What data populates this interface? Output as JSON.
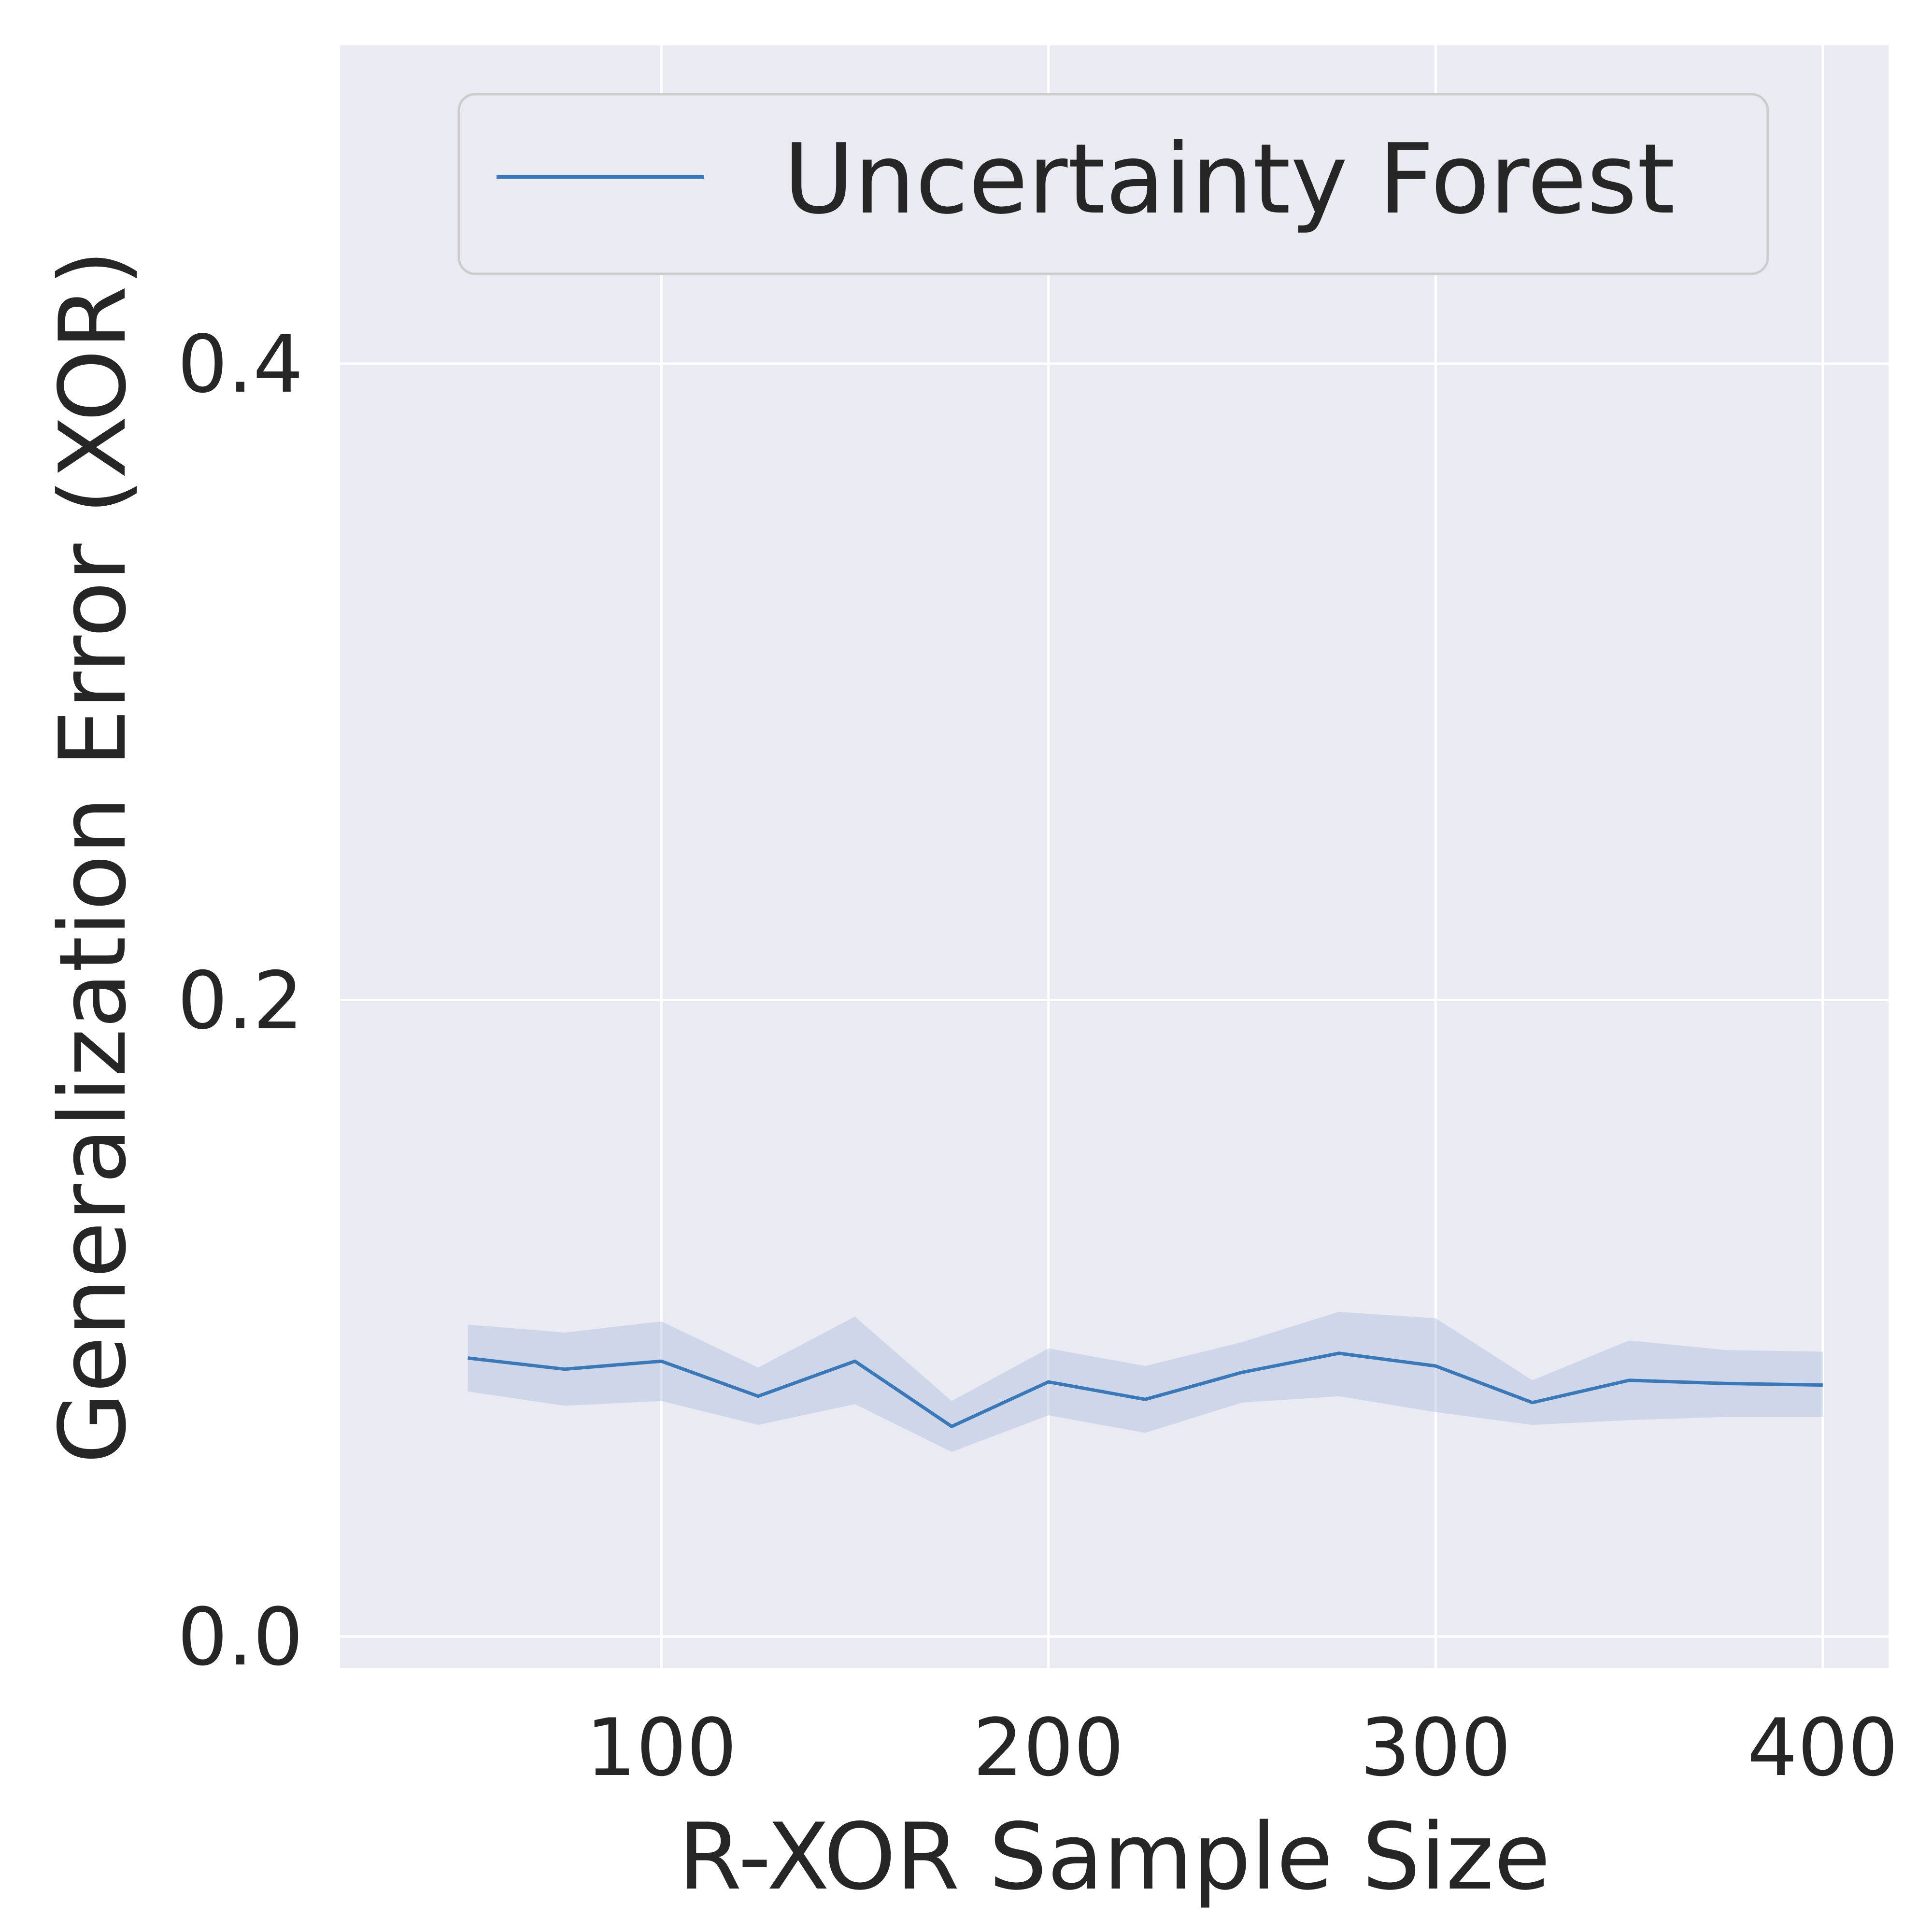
{
  "chart_data": {
    "type": "line",
    "xlabel": "R-XOR Sample Size",
    "ylabel": "Generalization Error (XOR)",
    "xlim": [
      17,
      417
    ],
    "ylim": [
      -0.01,
      0.5
    ],
    "xticks": [
      100,
      200,
      300,
      400
    ],
    "yticks": [
      0.0,
      0.2,
      0.4
    ],
    "xtick_labels": [
      "100",
      "200",
      "300",
      "400"
    ],
    "ytick_labels": [
      "0.0",
      "0.2",
      "0.4"
    ],
    "grid": true,
    "legend_position": "top-right",
    "x": [
      50,
      75,
      100,
      125,
      150,
      175,
      200,
      225,
      250,
      275,
      300,
      325,
      350,
      375,
      400
    ],
    "series": [
      {
        "name": "Uncertainty Forest",
        "color": "#3a78b8",
        "values": [
          0.0875,
          0.084,
          0.0865,
          0.0755,
          0.0865,
          0.066,
          0.08,
          0.0745,
          0.083,
          0.089,
          0.085,
          0.0735,
          0.0805,
          0.0795,
          0.079
        ],
        "band_lower": [
          0.077,
          0.0725,
          0.074,
          0.0665,
          0.073,
          0.058,
          0.0695,
          0.064,
          0.0735,
          0.0755,
          0.0705,
          0.0665,
          0.068,
          0.069,
          0.069
        ],
        "band_upper": [
          0.098,
          0.0955,
          0.099,
          0.0845,
          0.1005,
          0.074,
          0.0905,
          0.085,
          0.0925,
          0.102,
          0.1,
          0.0805,
          0.093,
          0.09,
          0.0895
        ],
        "band_color": "#aebfde"
      }
    ]
  },
  "colors": {
    "plot_background": "#eaeaf2",
    "grid": "#ffffff",
    "text": "#262626"
  }
}
